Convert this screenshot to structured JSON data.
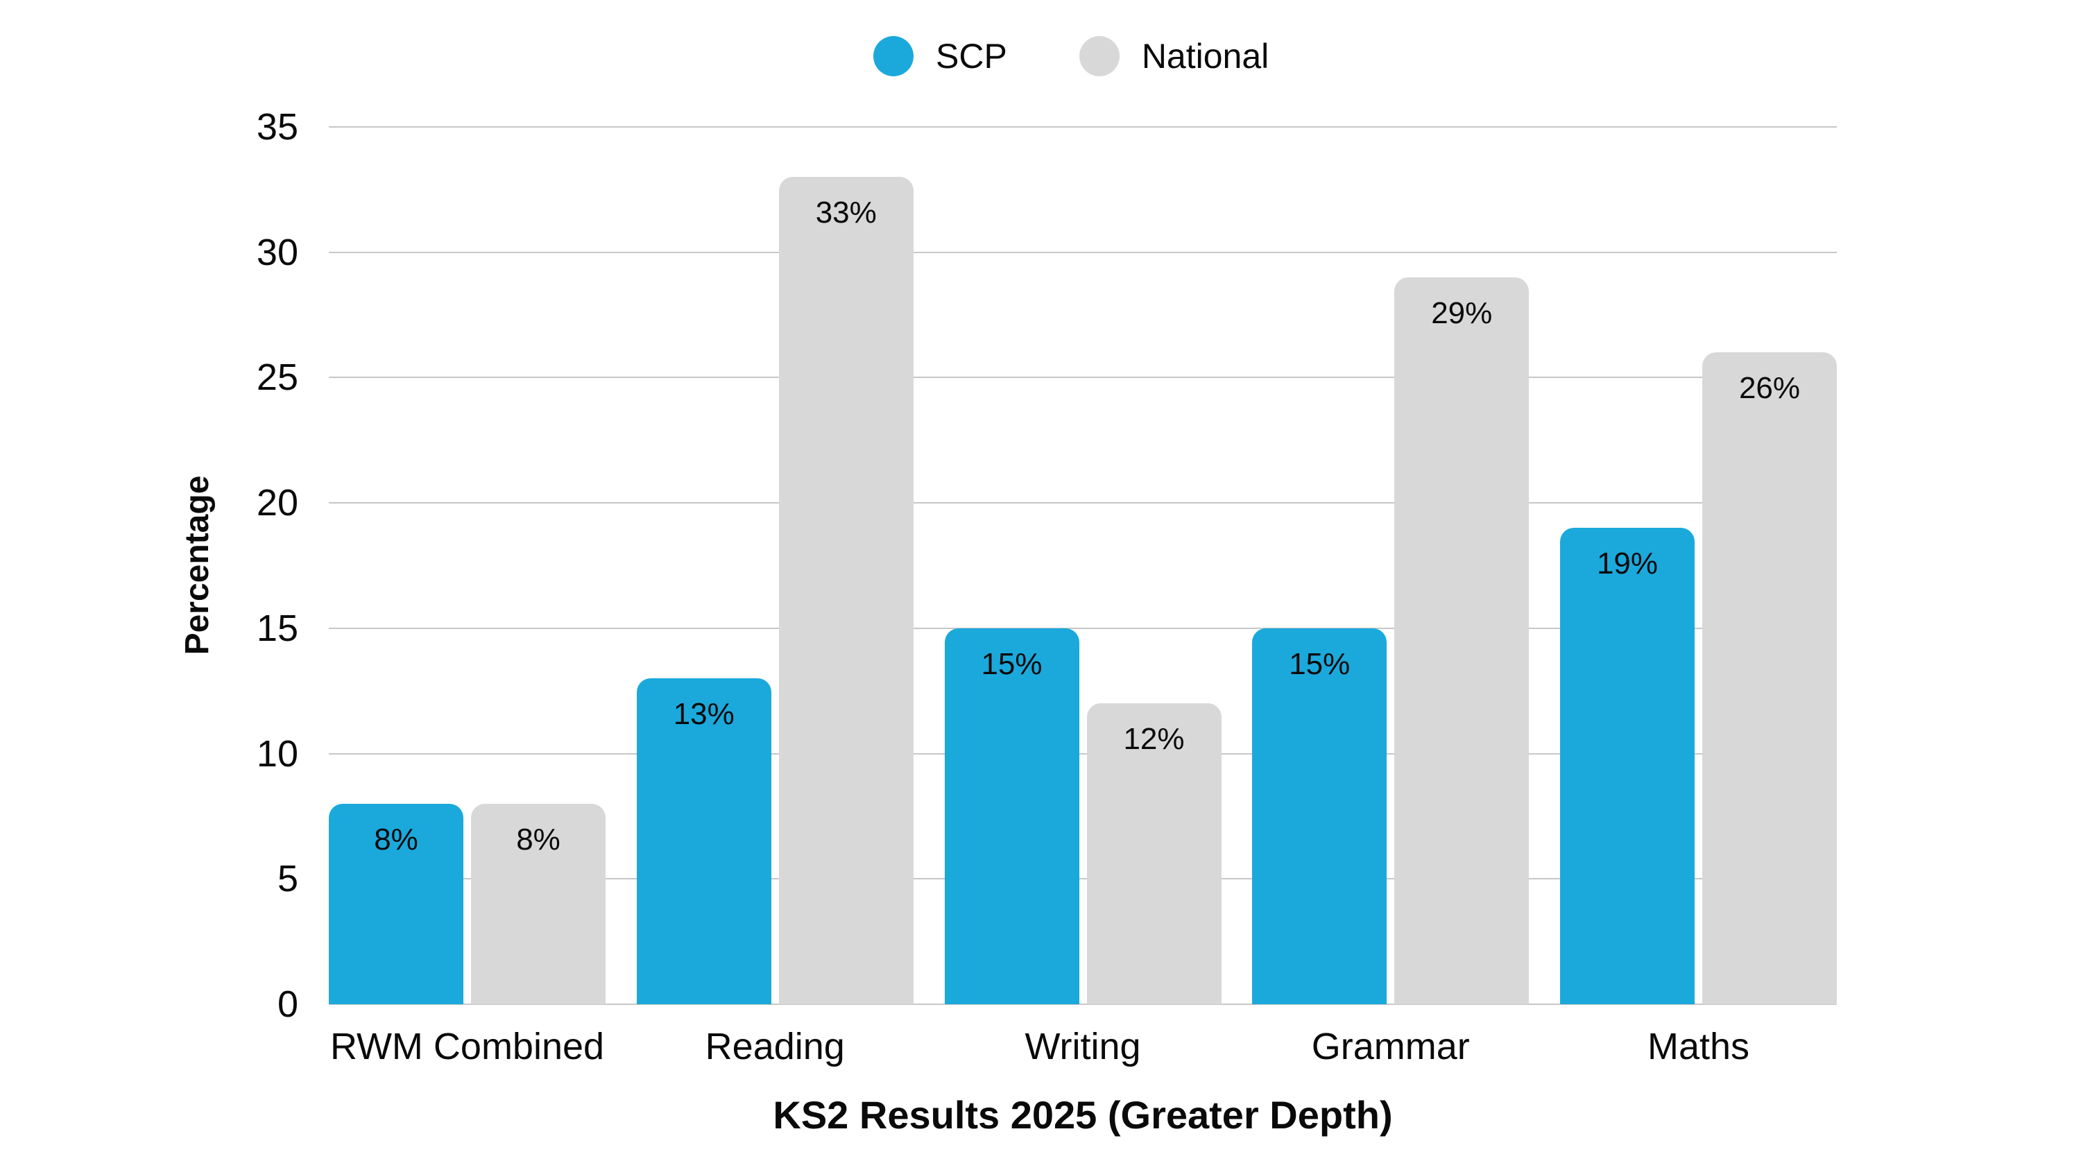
{
  "chart_data": {
    "type": "bar",
    "title": "",
    "xlabel": "KS2 Results 2025 (Greater Depth)",
    "ylabel": "Percentage",
    "categories": [
      "RWM Combined",
      "Reading",
      "Writing",
      "Grammar",
      "Maths"
    ],
    "series": [
      {
        "name": "SCP",
        "color": "#1BA9DC",
        "values": [
          8,
          13,
          15,
          15,
          19
        ]
      },
      {
        "name": "National",
        "color": "#D8D8D8",
        "values": [
          8,
          33,
          12,
          29,
          26
        ]
      }
    ],
    "value_label_suffix": "%",
    "value_labels": {
      "SCP": [
        "8%",
        "13%",
        "15%",
        "15%",
        "19%"
      ],
      "National": [
        "8%",
        "33%",
        "12%",
        "29%",
        "26%"
      ]
    },
    "ylim": [
      0,
      35
    ],
    "yticks": [
      0,
      5,
      10,
      15,
      20,
      25,
      30,
      35
    ],
    "grid": true,
    "legend_position": "top-center",
    "colors": {
      "scp_blue": "#1BA9DC",
      "national_gray": "#D8D8D8",
      "gridline": "#C7C7C7",
      "text": "#0A0A0A",
      "background": "#FFFFFF"
    }
  }
}
